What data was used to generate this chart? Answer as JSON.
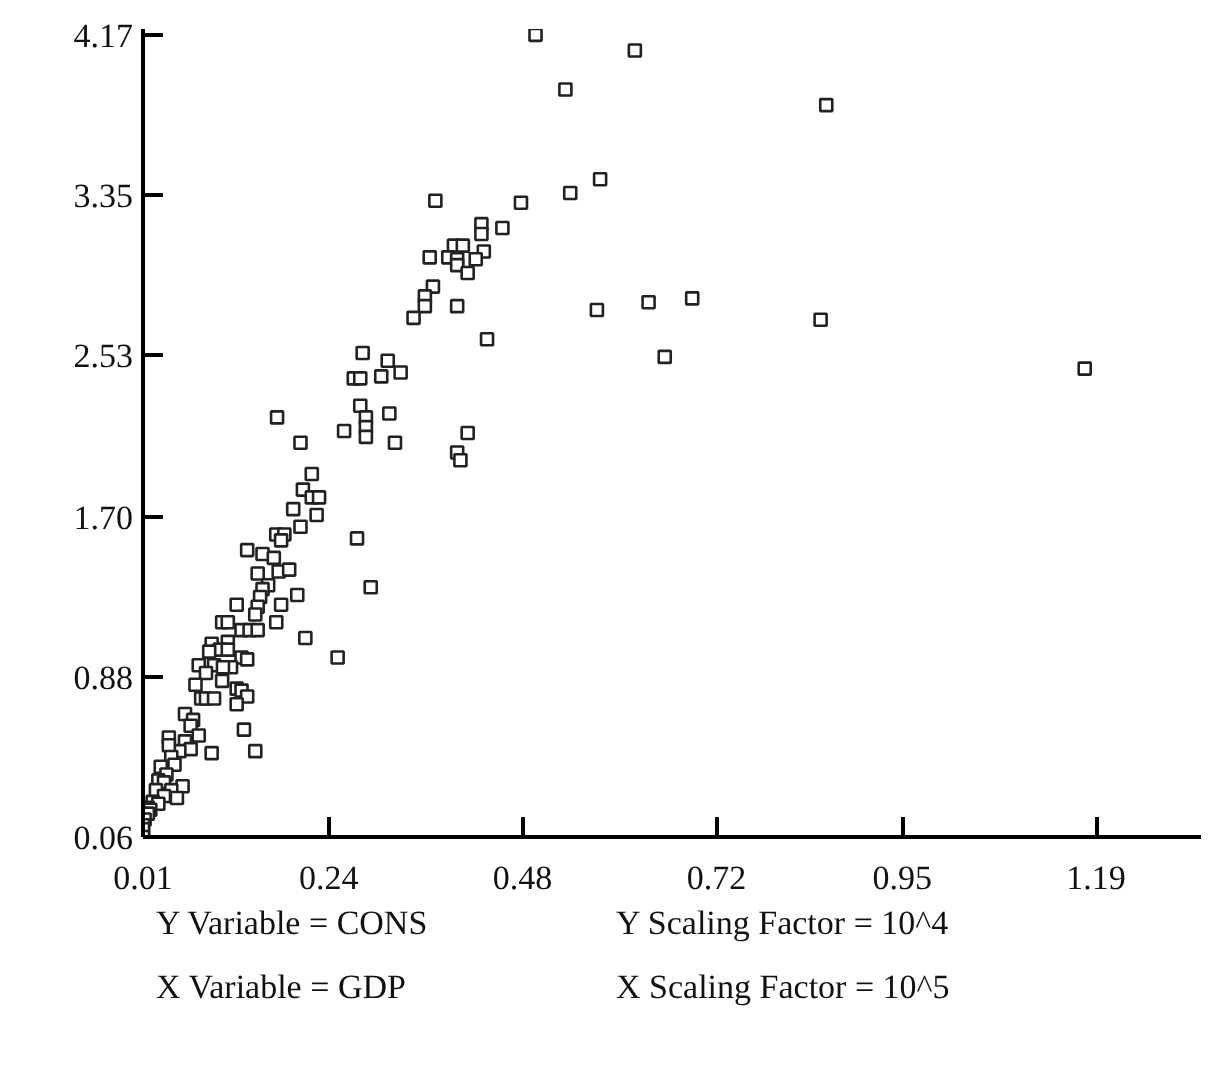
{
  "chart_data": {
    "type": "scatter",
    "marker": "square",
    "grid": false,
    "xlim": [
      0.01,
      1.32
    ],
    "ylim": [
      0.06,
      4.2
    ],
    "xticks": [
      0.01,
      0.24,
      0.48,
      0.72,
      0.95,
      1.19
    ],
    "yticks": [
      0.06,
      0.88,
      {
        "value": 1.7,
        "label": "1.70"
      },
      2.53,
      3.35,
      4.17
    ],
    "annotations": [
      "Y Variable = CONS",
      "Y Scaling Factor = 10^4",
      "X Variable = GDP",
      "X Scaling Factor = 10^5"
    ],
    "series": [
      {
        "color": "#222222",
        "x": [
          0.496,
          0.619,
          0.533,
          0.576,
          0.539,
          0.478,
          0.372,
          0.429,
          0.429,
          0.455,
          0.395,
          0.406,
          0.432,
          0.365,
          0.388,
          0.399,
          0.399,
          0.422,
          0.412,
          0.369,
          0.359,
          0.359,
          0.345,
          0.399,
          0.436,
          0.572,
          0.636,
          0.69,
          0.656,
          0.282,
          0.313,
          0.271,
          0.279,
          0.305,
          0.329,
          0.176,
          0.279,
          0.315,
          0.286,
          0.286,
          0.286,
          0.259,
          0.205,
          0.322,
          0.412,
          0.399,
          0.856,
          0.849,
          1.176,
          0.403,
          0.219,
          0.208,
          0.219,
          0.228,
          0.196,
          0.225,
          0.205,
          0.275,
          0.175,
          0.185,
          0.181,
          0.139,
          0.158,
          0.172,
          0.178,
          0.191,
          0.152,
          0.165,
          0.158,
          0.201,
          0.155,
          0.181,
          0.126,
          0.152,
          0.149,
          0.292,
          0.175,
          0.108,
          0.115,
          0.132,
          0.142,
          0.152,
          0.095,
          0.115,
          0.105,
          0.115,
          0.092,
          0.211,
          0.251,
          0.132,
          0.139,
          0.079,
          0.098,
          0.119,
          0.109,
          0.088,
          0.075,
          0.108,
          0.126,
          0.132,
          0.139,
          0.126,
          0.082,
          0.088,
          0.098,
          0.062,
          0.072,
          0.069,
          0.079,
          0.042,
          0.062,
          0.069,
          0.055,
          0.042,
          0.095,
          0.135,
          0.149,
          0.045,
          0.049,
          0.032,
          0.039,
          0.029,
          0.036,
          0.059,
          0.045,
          0.026,
          0.036,
          0.052,
          0.022,
          0.029,
          0.016,
          0.019,
          0.016,
          0.012,
          0.01,
          0.01,
          0.01
        ],
        "values": [
          4.17,
          4.09,
          3.89,
          3.43,
          3.36,
          3.31,
          3.32,
          3.2,
          3.15,
          3.18,
          3.09,
          3.09,
          3.06,
          3.03,
          3.03,
          3.02,
          2.99,
          3.02,
          2.95,
          2.88,
          2.83,
          2.78,
          2.72,
          2.78,
          2.61,
          2.76,
          2.8,
          2.82,
          2.52,
          2.54,
          2.5,
          2.41,
          2.41,
          2.42,
          2.44,
          2.21,
          2.27,
          2.23,
          2.21,
          2.16,
          2.11,
          2.14,
          2.08,
          2.08,
          2.13,
          2.03,
          3.81,
          2.71,
          2.46,
          1.99,
          1.92,
          1.84,
          1.8,
          1.8,
          1.74,
          1.71,
          1.65,
          1.59,
          1.61,
          1.61,
          1.58,
          1.53,
          1.51,
          1.49,
          1.42,
          1.43,
          1.41,
          1.35,
          1.33,
          1.3,
          1.29,
          1.25,
          1.25,
          1.24,
          1.2,
          1.34,
          1.16,
          1.16,
          1.16,
          1.12,
          1.12,
          1.12,
          1.05,
          1.06,
          1.02,
          1.02,
          1.01,
          1.08,
          0.98,
          0.98,
          0.97,
          0.94,
          0.94,
          0.93,
          0.93,
          0.9,
          0.84,
          0.86,
          0.82,
          0.81,
          0.78,
          0.74,
          0.77,
          0.77,
          0.77,
          0.69,
          0.66,
          0.63,
          0.58,
          0.57,
          0.55,
          0.51,
          0.5,
          0.53,
          0.49,
          0.61,
          0.5,
          0.47,
          0.43,
          0.42,
          0.38,
          0.35,
          0.34,
          0.32,
          0.3,
          0.3,
          0.27,
          0.26,
          0.24,
          0.23,
          0.21,
          0.2,
          0.18,
          0.15,
          0.12,
          0.1,
          0.06
        ]
      }
    ]
  }
}
